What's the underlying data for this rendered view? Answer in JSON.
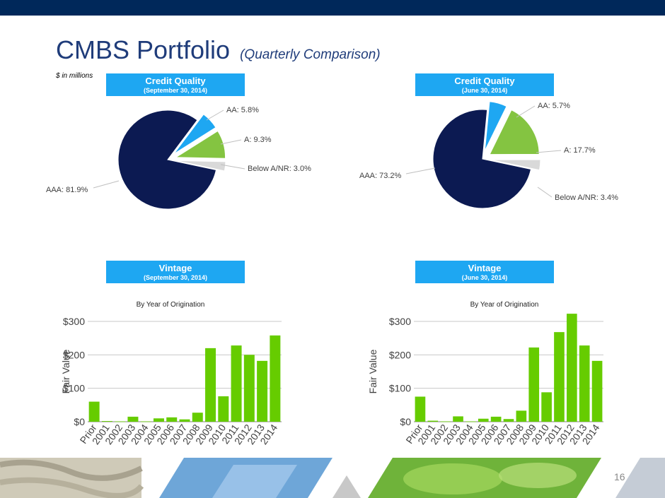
{
  "page": {
    "title": "CMBS Portfolio",
    "subtitle": "(Quarterly Comparison)",
    "units_note": "$ in millions",
    "page_number": "16"
  },
  "headers": {
    "cq_sep": {
      "line1": "Credit Quality",
      "line2": "(September 30, 2014)"
    },
    "cq_jun": {
      "line1": "Credit Quality",
      "line2": "(June 30, 2014)"
    },
    "vin_sep": {
      "line1": "Vintage",
      "line2": "(September 30, 2014)"
    },
    "vin_jun": {
      "line1": "Vintage",
      "line2": "(June 30, 2014)"
    }
  },
  "colors": {
    "navy": "#0c1a52",
    "blue": "#1ea7f2",
    "green": "#84c441",
    "gray": "#d9d9d9",
    "bar": "#66cc00"
  },
  "chart_data": [
    {
      "type": "pie",
      "title": "Credit Quality (September 30, 2014)",
      "slices": [
        {
          "label": "AAA",
          "value": 81.9,
          "text": "AAA: 81.9%"
        },
        {
          "label": "AA",
          "value": 5.8,
          "text": "AA: 5.8%"
        },
        {
          "label": "A",
          "value": 9.3,
          "text": "A: 9.3%"
        },
        {
          "label": "Below A/NR",
          "value": 3.0,
          "text": "Below A/NR: 3.0%"
        }
      ]
    },
    {
      "type": "pie",
      "title": "Credit Quality (June 30, 2014)",
      "slices": [
        {
          "label": "AAA",
          "value": 73.2,
          "text": "AAA: 73.2%"
        },
        {
          "label": "AA",
          "value": 5.7,
          "text": "AA: 5.7%"
        },
        {
          "label": "A",
          "value": 17.7,
          "text": "A: 17.7%"
        },
        {
          "label": "Below A/NR",
          "value": 3.4,
          "text": "Below A/NR: 3.4%"
        }
      ]
    },
    {
      "type": "bar",
      "title": "By Year of Origination",
      "ylabel": "Fair Value",
      "ylim": [
        0,
        300
      ],
      "yticks": [
        "$0",
        "$100",
        "$200",
        "$300"
      ],
      "categories": [
        "Prior",
        "2001",
        "2002",
        "2003",
        "2004",
        "2005",
        "2006",
        "2007",
        "2008",
        "2009",
        "2010",
        "2011",
        "2012",
        "2013",
        "2014"
      ],
      "values": [
        60,
        2,
        1,
        15,
        1,
        10,
        13,
        7,
        27,
        220,
        76,
        228,
        200,
        182,
        258
      ]
    },
    {
      "type": "bar",
      "title": "By Year of Origination",
      "ylabel": "Fair Value",
      "ylim": [
        0,
        300
      ],
      "yticks": [
        "$0",
        "$100",
        "$200",
        "$300"
      ],
      "categories": [
        "Prior",
        "2001",
        "2002",
        "2003",
        "2004",
        "2005",
        "2006",
        "2007",
        "2008",
        "2009",
        "2010",
        "2011",
        "2012",
        "2013",
        "2014"
      ],
      "values": [
        75,
        3,
        1,
        16,
        1,
        9,
        15,
        8,
        33,
        222,
        88,
        268,
        323,
        228,
        182
      ]
    }
  ]
}
